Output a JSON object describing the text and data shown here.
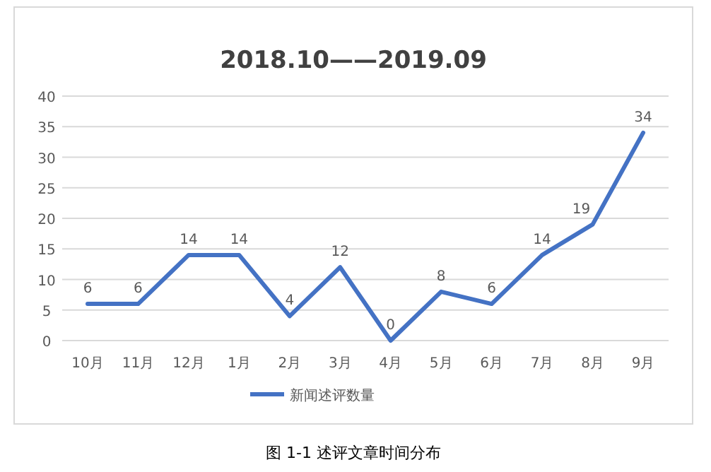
{
  "chart_data": {
    "type": "line",
    "title": "2018.10——2019.09",
    "categories": [
      "10月",
      "11月",
      "12月",
      "1月",
      "2月",
      "3月",
      "4月",
      "5月",
      "6月",
      "7月",
      "8月",
      "9月"
    ],
    "series": [
      {
        "name": "新闻述评数量",
        "color": "#4472c4",
        "values": [
          6,
          6,
          14,
          14,
          4,
          12,
          0,
          8,
          6,
          14,
          19,
          34
        ]
      }
    ],
    "ylim": [
      0,
      40
    ],
    "yticks": [
      0,
      5,
      10,
      15,
      20,
      25,
      30,
      35,
      40
    ],
    "grid": "y",
    "legend": "bottom",
    "data_labels": true,
    "annotations": [
      "图 1-1  述评文章时间分布"
    ]
  }
}
